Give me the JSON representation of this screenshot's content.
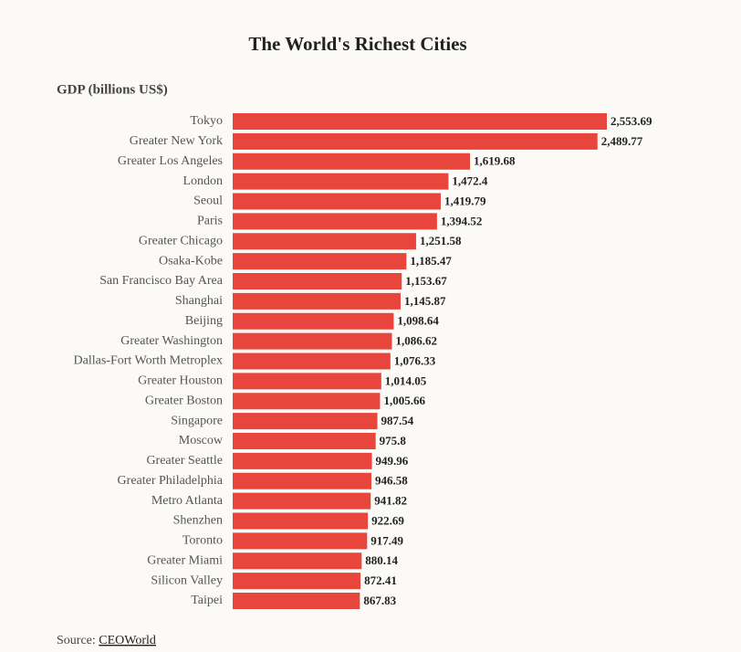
{
  "chart_data": {
    "type": "barh",
    "title": "The World's Richest Cities",
    "subtitle": "GDP (billions US$)",
    "categories": [
      "Tokyo",
      "Greater New York",
      "Greater Los Angeles",
      "London",
      "Seoul",
      "Paris",
      "Greater Chicago",
      "Osaka-Kobe",
      "San Francisco Bay Area",
      "Shanghai",
      "Beijing",
      "Greater Washington",
      "Dallas-Fort Worth Metroplex",
      "Greater Houston",
      "Greater Boston",
      "Singapore",
      "Moscow",
      "Greater Seattle",
      "Greater Philadelphia",
      "Metro Atlanta",
      "Shenzhen",
      "Toronto",
      "Greater Miami",
      "Silicon Valley",
      "Taipei"
    ],
    "values": [
      2553.69,
      2489.77,
      1619.68,
      1472.4,
      1419.79,
      1394.52,
      1251.58,
      1185.47,
      1153.67,
      1145.87,
      1098.64,
      1086.62,
      1076.33,
      1014.05,
      1005.66,
      987.54,
      975.8,
      949.96,
      946.58,
      941.82,
      922.69,
      917.49,
      880.14,
      872.41,
      867.83
    ],
    "value_labels": [
      "2,553.69",
      "2,489.77",
      "1,619.68",
      "1,472.4",
      "1,419.79",
      "1,394.52",
      "1,251.58",
      "1,185.47",
      "1,153.67",
      "1,145.87",
      "1,098.64",
      "1,086.62",
      "1,076.33",
      "1,014.05",
      "1,005.66",
      "987.54",
      "975.8",
      "949.96",
      "946.58",
      "941.82",
      "922.69",
      "917.49",
      "880.14",
      "872.41",
      "867.83"
    ],
    "color": "#e8453c",
    "source": {
      "label": "Source:",
      "link": "CEOWorld"
    }
  }
}
